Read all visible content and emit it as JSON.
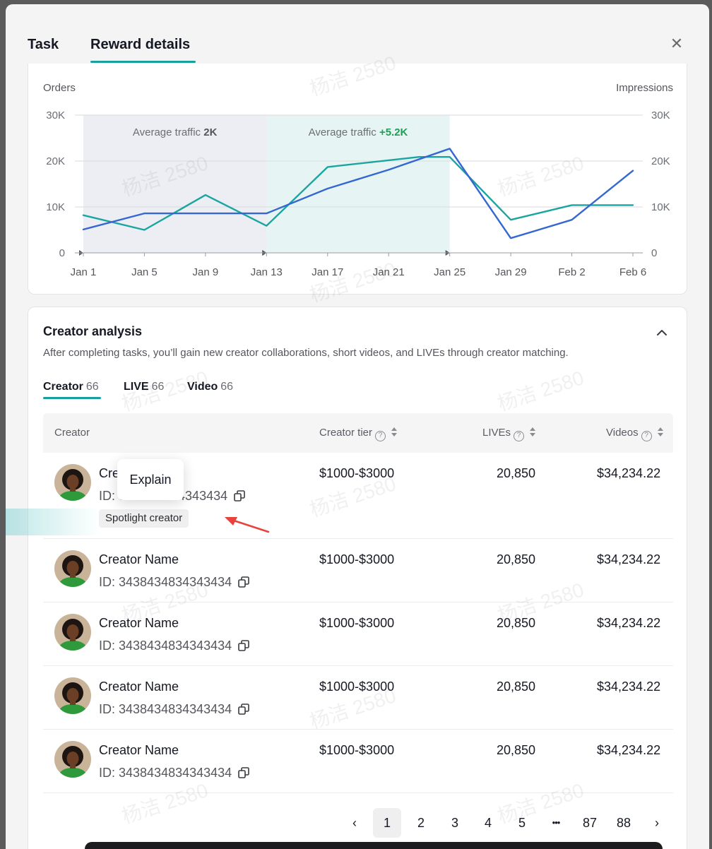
{
  "tabs": [
    {
      "label": "Task"
    },
    {
      "label": "Reward details"
    }
  ],
  "close_icon": "close-icon",
  "chart_data": {
    "type": "line",
    "left_axis_label": "Orders",
    "right_axis_label": "Impressions",
    "left_ticks": [
      "0",
      "10K",
      "20K",
      "30K"
    ],
    "right_ticks": [
      "0",
      "10K",
      "20K",
      "30K"
    ],
    "ylim": [
      0,
      30000
    ],
    "x": [
      "Jan 1",
      "Jan 3",
      "Jan 5",
      "Jan 7",
      "Jan 9",
      "Jan 11",
      "Jan 13",
      "Jan 15",
      "Jan 17",
      "Jan 19",
      "Jan 21",
      "Jan 23",
      "Jan 25",
      "Jan 27",
      "Jan 29",
      "Jan 31",
      "Feb 2",
      "Feb 4",
      "Feb 6"
    ],
    "x_ticks": [
      "Jan 1",
      "Jan 5",
      "Jan 9",
      "Jan 13",
      "Jan 17",
      "Jan 21",
      "Jan 25",
      "Jan 29",
      "Feb 2",
      "Feb 6"
    ],
    "series": [
      {
        "color": "#1aa5a0",
        "values": [
          8200,
          null,
          5000,
          null,
          12600,
          null,
          5900,
          null,
          18700,
          null,
          null,
          20900,
          20900,
          null,
          7200,
          null,
          10400,
          null,
          10400
        ]
      },
      {
        "color": "#3467d1",
        "values": [
          5100,
          null,
          8600,
          null,
          null,
          null,
          8600,
          null,
          14000,
          null,
          18100,
          null,
          22700,
          null,
          3200,
          null,
          7200,
          null,
          17900
        ]
      }
    ],
    "regions": [
      {
        "label": "Average traffic ",
        "value": "2K",
        "from": "Jan 1",
        "to": "Jan 13",
        "fill": "#eceef4",
        "value_color": "#55565c"
      },
      {
        "label": "Average traffic ",
        "value": "+5.2K",
        "from": "Jan 13",
        "to": "Jan 25",
        "fill": "#e6f5f4",
        "value_color": "#1f9e56"
      }
    ],
    "grid": true
  },
  "analysis": {
    "title": "Creator analysis",
    "description": "After completing tasks, you’ll gain new creator collaborations, short videos, and LIVEs through creator matching.",
    "subtabs": [
      {
        "label": "Creator",
        "count": "66"
      },
      {
        "label": "LIVE",
        "count": "66"
      },
      {
        "label": "Video",
        "count": "66"
      }
    ],
    "columns": {
      "creator": "Creator",
      "tier": "Creator tier",
      "lives": "LIVEs",
      "videos": "Videos"
    },
    "rows": [
      {
        "name": "Cre",
        "id": "ID: 3………334343434",
        "tier": "$1000-$3000",
        "lives": "20,850",
        "videos": "$34,234.22",
        "badge": "Spotlight creator"
      },
      {
        "name": "Creator Name",
        "id": "ID: 3438434834343434",
        "tier": "$1000-$3000",
        "lives": "20,850",
        "videos": "$34,234.22"
      },
      {
        "name": "Creator Name",
        "id": "ID: 3438434834343434",
        "tier": "$1000-$3000",
        "lives": "20,850",
        "videos": "$34,234.22"
      },
      {
        "name": "Creator Name",
        "id": "ID: 3438434834343434",
        "tier": "$1000-$3000",
        "lives": "20,850",
        "videos": "$34,234.22"
      },
      {
        "name": "Creator Name",
        "id": "ID: 3438434834343434",
        "tier": "$1000-$3000",
        "lives": "20,850",
        "videos": "$34,234.22"
      }
    ],
    "tooltip": "Explain"
  },
  "pagination": {
    "pages": [
      "1",
      "2",
      "3",
      "4",
      "5",
      "•••",
      "87",
      "88"
    ],
    "current": "1",
    "prev_icon": "chevron-left-icon",
    "next_icon": "chevron-right-icon"
  },
  "watermark": "杨洁 2580"
}
